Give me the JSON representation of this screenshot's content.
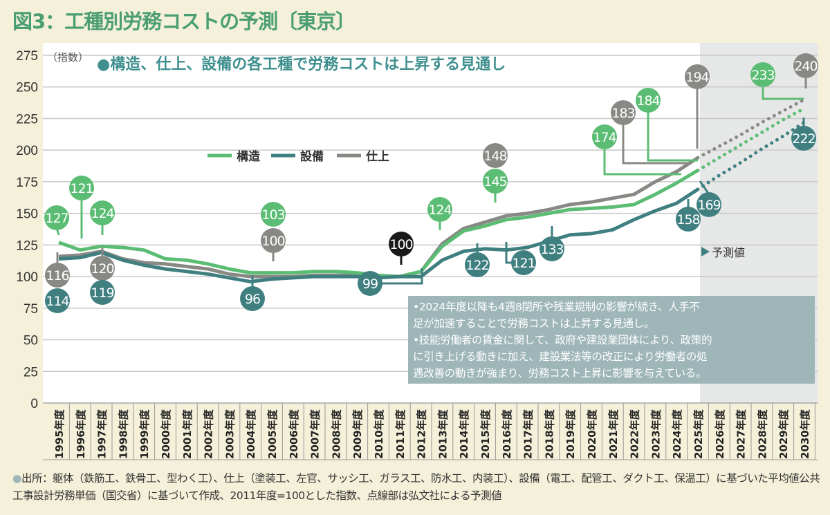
{
  "title": "図3：工種別労務コストの予測〔東京〕",
  "footer": "出所：躯体（鉄筋工、鉄骨工、型わく工）、仕上（塗装工、左官、サッシ工、ガラス工、防水工、内装工）、設備（電工、配管工、ダクト工、保温工）に基づいた平均値公共工事設計労務単価（国交省）に基づいて作成、2011年度=100とした指数、点線部は弘文社による予測値",
  "chart_data": {
    "type": "line",
    "subtitle": "●構造、仕上、設備の各工種で労務コストは上昇する見通し",
    "ylabel": "（指数）",
    "ylim": [
      0,
      275
    ],
    "yticks": [
      0,
      25,
      50,
      75,
      100,
      125,
      150,
      175,
      200,
      225,
      250,
      275
    ],
    "grid": true,
    "legend_position": "top-left",
    "x": [
      1995,
      1996,
      1997,
      1998,
      1999,
      2000,
      2001,
      2002,
      2003,
      2004,
      2005,
      2006,
      2007,
      2008,
      2009,
      2010,
      2011,
      2012,
      2013,
      2014,
      2015,
      2016,
      2017,
      2018,
      2019,
      2020,
      2021,
      2022,
      2023,
      2024,
      2025,
      2026,
      2027,
      2028,
      2029,
      2030
    ],
    "xtick_suffix": "年度",
    "forecast_from": 2025,
    "forecast_label": "予測値",
    "series": [
      {
        "name": "構造",
        "color": "#5bbd74",
        "values": [
          127,
          121,
          124,
          123,
          121,
          114,
          113,
          110,
          106,
          103,
          103,
          103,
          104,
          104,
          103,
          101,
          100,
          104,
          124,
          136,
          140,
          145,
          147,
          150,
          153,
          154,
          155,
          157,
          165,
          174,
          184,
          194,
          204,
          214,
          224,
          233
        ]
      },
      {
        "name": "設備",
        "color": "#3f7f80",
        "values": [
          114,
          115,
          119,
          113,
          109,
          106,
          104,
          102,
          99,
          96,
          98,
          99,
          100,
          100,
          100,
          99,
          100,
          100,
          113,
          120,
          122,
          121,
          123,
          128,
          133,
          134,
          137,
          145,
          152,
          158,
          169,
          180,
          190,
          201,
          211,
          222
        ]
      },
      {
        "name": "仕上",
        "color": "#888884",
        "values": [
          116,
          117,
          120,
          114,
          111,
          110,
          108,
          106,
          102,
          100,
          100,
          100,
          101,
          101,
          101,
          100,
          100,
          104,
          126,
          138,
          143,
          148,
          150,
          153,
          157,
          159,
          162,
          165,
          175,
          183,
          194,
          203,
          212,
          222,
          231,
          240
        ]
      }
    ],
    "annotations": [
      {
        "series": "構造",
        "year": 1995,
        "label": "127"
      },
      {
        "series": "構造",
        "year": 1996,
        "label": "121"
      },
      {
        "series": "構造",
        "year": 1997,
        "label": "124"
      },
      {
        "series": "構造",
        "year": 2005,
        "label": "103"
      },
      {
        "series": "仕上",
        "year": 2005,
        "label": "100"
      },
      {
        "series": "all",
        "year": 2011,
        "label": "100"
      },
      {
        "series": "設備",
        "year": 2010,
        "label": "99"
      },
      {
        "series": "仕上",
        "year": 1995,
        "label": "116"
      },
      {
        "series": "設備",
        "year": 1995,
        "label": "114"
      },
      {
        "series": "仕上",
        "year": 1997,
        "label": "120"
      },
      {
        "series": "設備",
        "year": 1997,
        "label": "119"
      },
      {
        "series": "設備",
        "year": 2004,
        "label": "96"
      },
      {
        "series": "構造",
        "year": 2013,
        "label": "124"
      },
      {
        "series": "仕上",
        "year": 2016,
        "label": "148"
      },
      {
        "series": "構造",
        "year": 2016,
        "label": "145"
      },
      {
        "series": "設備",
        "year": 2015,
        "label": "122"
      },
      {
        "series": "設備",
        "year": 2016,
        "label": "121"
      },
      {
        "series": "設備",
        "year": 2019,
        "label": "133"
      },
      {
        "series": "構造",
        "year": 2024,
        "label": "174"
      },
      {
        "series": "仕上",
        "year": 2024,
        "label": "183"
      },
      {
        "series": "構造",
        "year": 2025,
        "label": "184"
      },
      {
        "series": "仕上",
        "year": 2025,
        "label": "194"
      },
      {
        "series": "設備",
        "year": 2024,
        "label": "158"
      },
      {
        "series": "設備",
        "year": 2025,
        "label": "169"
      },
      {
        "series": "構造",
        "year": 2030,
        "label": "233"
      },
      {
        "series": "仕上",
        "year": 2030,
        "label": "240"
      },
      {
        "series": "設備",
        "year": 2030,
        "label": "222"
      }
    ],
    "note": [
      "•2024年度以降も4週8閉所や残業規制の影響が続き、人手不",
      "足が加速することで労務コストは上昇する見通し。",
      "•技能労働者の賃金に関して、政府や建設業団体により、政策的",
      "に引き上げる動きに加え、建設業法等の改正により労働者の処",
      "遇改善の動きが強まり、労務コスト上昇に影響を与えている。"
    ]
  }
}
